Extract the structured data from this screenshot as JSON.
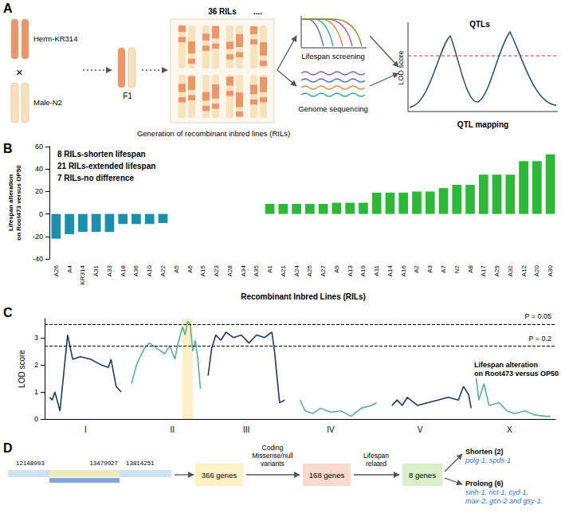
{
  "panel_a": {
    "letter": "A",
    "parent1": "Herm-KR314",
    "cross": "×",
    "parent2": "Male-N2",
    "f1": "F1",
    "ril_count": "36 RILs",
    "ellipsis": "....",
    "ril_caption": "Generation of recombinant inbred lines (RILs)",
    "screening": "Lifespan screening",
    "sequencing": "Genome sequencing",
    "peak_label": "QTLs",
    "y_label": "LOD score",
    "mapping": "QTL mapping"
  },
  "chart_data": [
    {
      "panel": "B",
      "type": "bar",
      "categories": [
        "A26",
        "A4",
        "KR314",
        "A31",
        "A33",
        "A18",
        "A36",
        "A10",
        "A22",
        "A5",
        "A6",
        "A15",
        "A23",
        "A28",
        "A34",
        "A35",
        "A1",
        "A21",
        "A24",
        "A25",
        "A27",
        "A9",
        "A13",
        "A19",
        "A11",
        "A14",
        "A16",
        "A2",
        "A3",
        "A7",
        "N2",
        "A8",
        "A17",
        "A29",
        "A32",
        "A12",
        "A20",
        "A30"
      ],
      "values": [
        -22,
        -18,
        -16,
        -16,
        -16,
        -9,
        -9,
        -9,
        -8,
        0,
        0,
        0,
        0,
        0,
        0,
        0,
        9,
        9,
        9,
        9,
        9,
        10,
        10,
        10,
        19,
        19,
        19,
        20,
        20,
        23,
        26,
        26,
        35,
        35,
        35,
        47,
        47,
        53
      ],
      "colors": [
        "#1e8fab",
        "#1e8fab",
        "#1e8fab",
        "#1e8fab",
        "#1e8fab",
        "#1e8fab",
        "#1e8fab",
        "#1e8fab",
        "#1e8fab",
        "#9e9e9e",
        "#9e9e9e",
        "#9e9e9e",
        "#9e9e9e",
        "#9e9e9e",
        "#9e9e9e",
        "#9e9e9e",
        "#2eb83a",
        "#2eb83a",
        "#2eb83a",
        "#2eb83a",
        "#2eb83a",
        "#2eb83a",
        "#2eb83a",
        "#2eb83a",
        "#2eb83a",
        "#2eb83a",
        "#2eb83a",
        "#2eb83a",
        "#2eb83a",
        "#2eb83a",
        "#2eb83a",
        "#2eb83a",
        "#2eb83a",
        "#2eb83a",
        "#2eb83a",
        "#2eb83a",
        "#2eb83a",
        "#2eb83a"
      ],
      "xlabel": "Recombinant Inbred Lines (RILs)",
      "ylabel": "Lifespan alteration on Root473 versus OP50",
      "ylim": [
        -40,
        60
      ],
      "yticks": [
        -40,
        -20,
        0,
        20,
        40,
        60
      ],
      "grid": false,
      "annotations": [
        "8 RILs-shorten lifespan",
        "21 RILs-extended lifespan",
        "7 RILs-no difference"
      ]
    },
    {
      "panel": "C",
      "type": "line",
      "ylabel": "LOD score",
      "xlim": [
        0,
        100
      ],
      "xticks": [
        {
          "value": 8,
          "label": "I"
        },
        {
          "value": 25,
          "label": "II"
        },
        {
          "value": 39.5,
          "label": "III"
        },
        {
          "value": 56,
          "label": "IV"
        },
        {
          "value": 73.5,
          "label": "V"
        },
        {
          "value": 91,
          "label": "X"
        }
      ],
      "ylim": [
        0,
        3.7
      ],
      "yticks": [
        0,
        1,
        2,
        3
      ],
      "grid": false,
      "series": [
        {
          "color": "#1f3a5f",
          "x": [
            1,
            1.5,
            2,
            3,
            4.5,
            5.5,
            7,
            9,
            11,
            12.5,
            13,
            14,
            15
          ],
          "values": [
            0.8,
            0.7,
            1.0,
            0.3,
            3.1,
            2.2,
            2.3,
            2.2,
            2.0,
            1.9,
            2.2,
            1.2,
            1.0
          ]
        },
        {
          "color": "#5aaea0",
          "x": [
            17,
            18,
            19.5,
            20.5,
            22,
            23.5,
            24.5,
            25.5,
            26,
            27,
            27.5,
            28,
            28.5,
            29,
            29.5,
            30,
            30.5
          ],
          "values": [
            1.3,
            2.0,
            2.6,
            2.8,
            2.6,
            2.4,
            2.7,
            2.2,
            2.7,
            3.4,
            3.1,
            3.6,
            3.5,
            2.5,
            2.9,
            2.2,
            1.1
          ]
        },
        {
          "color": "#1f3a5f",
          "x": [
            32,
            32.7,
            33.5,
            34.5,
            35.5,
            37,
            38.5,
            40,
            41.5,
            43,
            44.5,
            45,
            46,
            47
          ],
          "values": [
            1.6,
            2.6,
            3.1,
            2.9,
            3.2,
            3.0,
            3.1,
            2.8,
            3.1,
            3.0,
            3.2,
            2.5,
            0.6,
            0.7
          ]
        },
        {
          "color": "#5aaea0",
          "x": [
            50,
            51,
            52.5,
            54,
            56,
            58,
            60,
            62,
            64,
            65
          ],
          "values": [
            0.7,
            0.3,
            0.2,
            0.4,
            0.25,
            0.3,
            0.1,
            0.4,
            0.5,
            0.6
          ]
        },
        {
          "color": "#1f3a5f",
          "x": [
            68,
            69,
            70,
            71,
            73,
            75,
            77,
            79,
            81,
            82,
            83,
            83.5
          ],
          "values": [
            0.5,
            0.7,
            0.5,
            0.8,
            0.5,
            0.6,
            0.7,
            0.8,
            0.7,
            1.2,
            0.9,
            0.4
          ]
        },
        {
          "color": "#5aaea0",
          "x": [
            84.5,
            85,
            86,
            87,
            89,
            90.5,
            92,
            94,
            96,
            98,
            99
          ],
          "values": [
            1.5,
            0.7,
            1.3,
            0.5,
            0.6,
            0.3,
            0.2,
            0.3,
            0.15,
            0.1,
            0.1
          ]
        }
      ],
      "thresholds": [
        {
          "value": 3.5,
          "label": "P = 0.05"
        },
        {
          "value": 2.7,
          "label": "P = 0.2"
        }
      ],
      "highlight": [
        27,
        29
      ],
      "annotations": [
        "Lifespan alteration on Root473 versus OP50"
      ]
    }
  ],
  "panel_d": {
    "letter": "D",
    "coordinates": [
      12148993,
      13479927,
      13814251
    ],
    "boxes": [
      "366 genes",
      "168 genes",
      "8 genes"
    ],
    "steps": [
      [
        "Coding",
        "Missense/null",
        "variants"
      ],
      [
        "Lifespan",
        "related"
      ]
    ],
    "outcomes": [
      {
        "label": "Shorten (2)",
        "genes": [
          "polg-1, spds-1"
        ]
      },
      {
        "label": "Prolong (6)",
        "genes": [
          "sinh-1, rict-1, cyd-1,",
          "max-2, gcn-2 and gsy-1."
        ]
      }
    ]
  }
}
